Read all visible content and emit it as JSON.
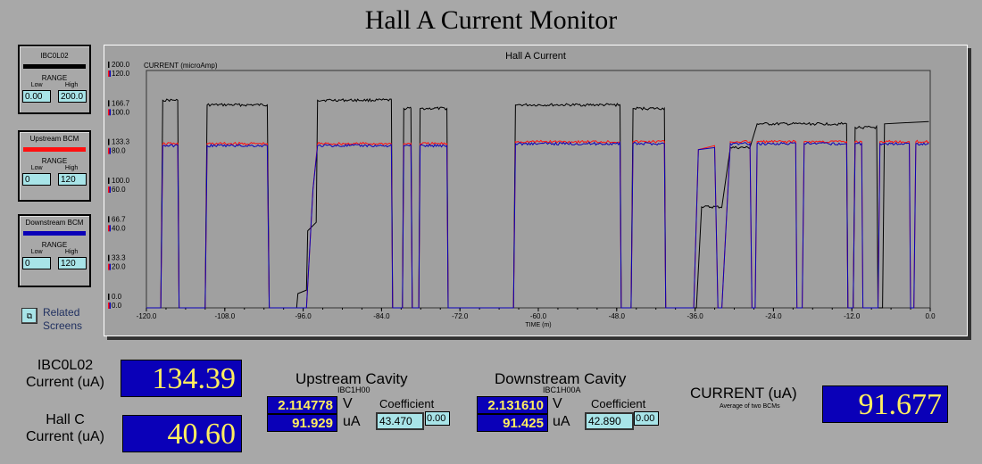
{
  "title": "Hall A Current Monitor",
  "legends": [
    {
      "name": "IBC0L02",
      "color": "#000000",
      "range_label": "RANGE",
      "low_label": "Low",
      "high_label": "High",
      "low": "0.00",
      "high": "200.0"
    },
    {
      "name": "Upstream BCM",
      "color": "#ff1010",
      "range_label": "RANGE",
      "low_label": "Low",
      "high_label": "High",
      "low": "0",
      "high": "120"
    },
    {
      "name": "Downstream BCM",
      "color": "#0a00b8",
      "range_label": "RANGE",
      "low_label": "Low",
      "high_label": "High",
      "low": "0",
      "high": "120"
    }
  ],
  "related": {
    "label_line1": "Related",
    "label_line2": "Screens",
    "icon": "related-screens-icon"
  },
  "chart": {
    "title": "Hall A Current"
  },
  "chart_data": {
    "type": "line",
    "title": "Hall A Current",
    "ylabel": "CURRENT (microAmp)",
    "xlabel": "TIME (m)",
    "xlim": [
      -120,
      0
    ],
    "x_ticks": [
      "-120.0",
      "-108.0",
      "-96.0",
      "-84.0",
      "-72.0",
      "-60.0",
      "-48.0",
      "-36.0",
      "-24.0",
      "-12.0",
      "0.0"
    ],
    "y_ticks_black": [
      "200.0",
      "166.7",
      "133.3",
      "100.0",
      "66.7",
      "33.3",
      "0.0"
    ],
    "y_ticks_color": [
      "120.0",
      "100.0",
      "80.0",
      "60.0",
      "40.0",
      "20.0",
      "0.0"
    ],
    "grid": false,
    "series": [
      {
        "name": "IBC0L02",
        "color": "#000000",
        "ylim": [
          0,
          200
        ],
        "points": [
          [
            -120,
            0
          ],
          [
            -117.8,
            0
          ],
          [
            -117.5,
            175
          ],
          [
            -116.0,
            175
          ],
          [
            -115.2,
            175
          ],
          [
            -115.0,
            0
          ],
          [
            -111.0,
            0
          ],
          [
            -110.7,
            171
          ],
          [
            -101.5,
            171
          ],
          [
            -101.2,
            0
          ],
          [
            -97,
            0
          ],
          [
            -96.8,
            12
          ],
          [
            -95.5,
            15
          ],
          [
            -95.3,
            65
          ],
          [
            -94,
            72
          ],
          [
            -93.8,
            175
          ],
          [
            -82.5,
            175
          ],
          [
            -82.3,
            0
          ],
          [
            -80.8,
            0
          ],
          [
            -80.6,
            168
          ],
          [
            -79.5,
            168
          ],
          [
            -79.3,
            0
          ],
          [
            -78.3,
            0
          ],
          [
            -78.1,
            168
          ],
          [
            -74,
            168
          ],
          [
            -73.8,
            0
          ],
          [
            -63.8,
            0
          ],
          [
            -63.5,
            171
          ],
          [
            -47.5,
            171
          ],
          [
            -47.3,
            0
          ],
          [
            -45.8,
            0
          ],
          [
            -45.5,
            168
          ],
          [
            -40.7,
            168
          ],
          [
            -40.5,
            0
          ],
          [
            -35.8,
            0
          ],
          [
            -35.0,
            85
          ],
          [
            -31.9,
            85
          ],
          [
            -30.6,
            135
          ],
          [
            -27.6,
            135
          ],
          [
            -26.5,
            155
          ],
          [
            -12.8,
            155
          ],
          [
            -12.6,
            0
          ],
          [
            -11.8,
            0
          ],
          [
            -11.5,
            152
          ],
          [
            -8.2,
            152
          ],
          [
            -8.0,
            0
          ],
          [
            -7.3,
            0
          ],
          [
            -7.0,
            155
          ],
          [
            -0.2,
            157
          ]
        ]
      },
      {
        "name": "Upstream BCM",
        "color": "#ff1010",
        "ylim": [
          0,
          120
        ],
        "points": [
          [
            -120,
            0
          ],
          [
            -117.8,
            0
          ],
          [
            -117.5,
            83
          ],
          [
            -115.2,
            83
          ],
          [
            -115.0,
            0
          ],
          [
            -111.0,
            0
          ],
          [
            -110.7,
            83
          ],
          [
            -101.5,
            83
          ],
          [
            -101.2,
            0
          ],
          [
            -95.5,
            0
          ],
          [
            -94.5,
            60
          ],
          [
            -93.8,
            83
          ],
          [
            -82.5,
            83
          ],
          [
            -82.3,
            0
          ],
          [
            -80.8,
            0
          ],
          [
            -80.6,
            83
          ],
          [
            -79.5,
            83
          ],
          [
            -79.3,
            0
          ],
          [
            -78.3,
            0
          ],
          [
            -78.1,
            83
          ],
          [
            -74,
            83
          ],
          [
            -73.8,
            0
          ],
          [
            -63.8,
            0
          ],
          [
            -63.5,
            84
          ],
          [
            -47.5,
            84
          ],
          [
            -47.3,
            0
          ],
          [
            -45.8,
            0
          ],
          [
            -45.5,
            84
          ],
          [
            -40.7,
            84
          ],
          [
            -40.5,
            0
          ],
          [
            -36.2,
            0
          ],
          [
            -35.5,
            80
          ],
          [
            -33,
            82
          ],
          [
            -32.5,
            0
          ],
          [
            -31.9,
            0
          ],
          [
            -30.6,
            84
          ],
          [
            -27.6,
            84
          ],
          [
            -27.3,
            0
          ],
          [
            -26.8,
            0
          ],
          [
            -26.5,
            84
          ],
          [
            -20.6,
            84
          ],
          [
            -20.4,
            0
          ],
          [
            -19.6,
            0
          ],
          [
            -19.3,
            84
          ],
          [
            -12.8,
            84
          ],
          [
            -12.6,
            0
          ],
          [
            -11.8,
            0
          ],
          [
            -11.5,
            84
          ],
          [
            -10.5,
            84
          ],
          [
            -10.3,
            0
          ],
          [
            -8.0,
            0
          ],
          [
            -7.7,
            84
          ],
          [
            -3.2,
            84
          ],
          [
            -3.0,
            0
          ],
          [
            -2.5,
            0
          ],
          [
            -2.2,
            84
          ],
          [
            -0.2,
            84
          ]
        ]
      },
      {
        "name": "Downstream BCM",
        "color": "#0a00b8",
        "ylim": [
          0,
          120
        ],
        "points": [
          [
            -120,
            0
          ],
          [
            -117.8,
            0
          ],
          [
            -117.5,
            82
          ],
          [
            -115.2,
            82
          ],
          [
            -115.0,
            0
          ],
          [
            -111.0,
            0
          ],
          [
            -110.7,
            82
          ],
          [
            -101.5,
            82
          ],
          [
            -101.2,
            0
          ],
          [
            -95.5,
            0
          ],
          [
            -94.5,
            60
          ],
          [
            -93.8,
            82
          ],
          [
            -82.5,
            82
          ],
          [
            -82.3,
            0
          ],
          [
            -80.8,
            0
          ],
          [
            -80.6,
            82
          ],
          [
            -79.5,
            82
          ],
          [
            -79.3,
            0
          ],
          [
            -78.3,
            0
          ],
          [
            -78.1,
            82
          ],
          [
            -74,
            82
          ],
          [
            -73.8,
            0
          ],
          [
            -63.8,
            0
          ],
          [
            -63.5,
            83
          ],
          [
            -47.5,
            83
          ],
          [
            -47.3,
            0
          ],
          [
            -45.8,
            0
          ],
          [
            -45.5,
            83
          ],
          [
            -40.7,
            83
          ],
          [
            -40.5,
            0
          ],
          [
            -36.2,
            0
          ],
          [
            -35.5,
            80
          ],
          [
            -33,
            81
          ],
          [
            -32.5,
            0
          ],
          [
            -31.9,
            0
          ],
          [
            -30.6,
            83
          ],
          [
            -27.6,
            83
          ],
          [
            -27.3,
            0
          ],
          [
            -26.8,
            0
          ],
          [
            -26.5,
            83
          ],
          [
            -20.6,
            83
          ],
          [
            -20.4,
            0
          ],
          [
            -19.6,
            0
          ],
          [
            -19.3,
            83
          ],
          [
            -12.8,
            83
          ],
          [
            -12.6,
            0
          ],
          [
            -11.8,
            0
          ],
          [
            -11.5,
            83
          ],
          [
            -10.5,
            83
          ],
          [
            -10.3,
            0
          ],
          [
            -8.0,
            0
          ],
          [
            -7.7,
            83
          ],
          [
            -3.2,
            83
          ],
          [
            -3.0,
            0
          ],
          [
            -2.5,
            0
          ],
          [
            -2.2,
            83
          ],
          [
            -0.2,
            83
          ]
        ]
      }
    ]
  },
  "readouts": {
    "ibc_label_1": "IBC0L02",
    "ibc_label_2": "Current (uA)",
    "ibc_value": "134.39",
    "hallc_label_1": "Hall C",
    "hallc_label_2": "Current (uA)",
    "hallc_value": "40.60",
    "upstream": {
      "title": "Upstream Cavity",
      "sub": "IBC1H00",
      "volts": "2.114778",
      "volt_unit": "V",
      "ua": "91.929",
      "ua_unit": "uA",
      "coef_label": "Coefficient",
      "coef": "43.470",
      "offset": "0.00"
    },
    "downstream": {
      "title": "Downstream Cavity",
      "sub": "IBC1H00A",
      "volts": "2.131610",
      "volt_unit": "V",
      "ua": "91.425",
      "ua_unit": "uA",
      "coef_label": "Coefficient",
      "coef": "42.890",
      "offset": "0.00"
    },
    "current_label": "CURRENT (uA)",
    "current_sub": "Average of two BCMs",
    "current_value": "91.677"
  }
}
